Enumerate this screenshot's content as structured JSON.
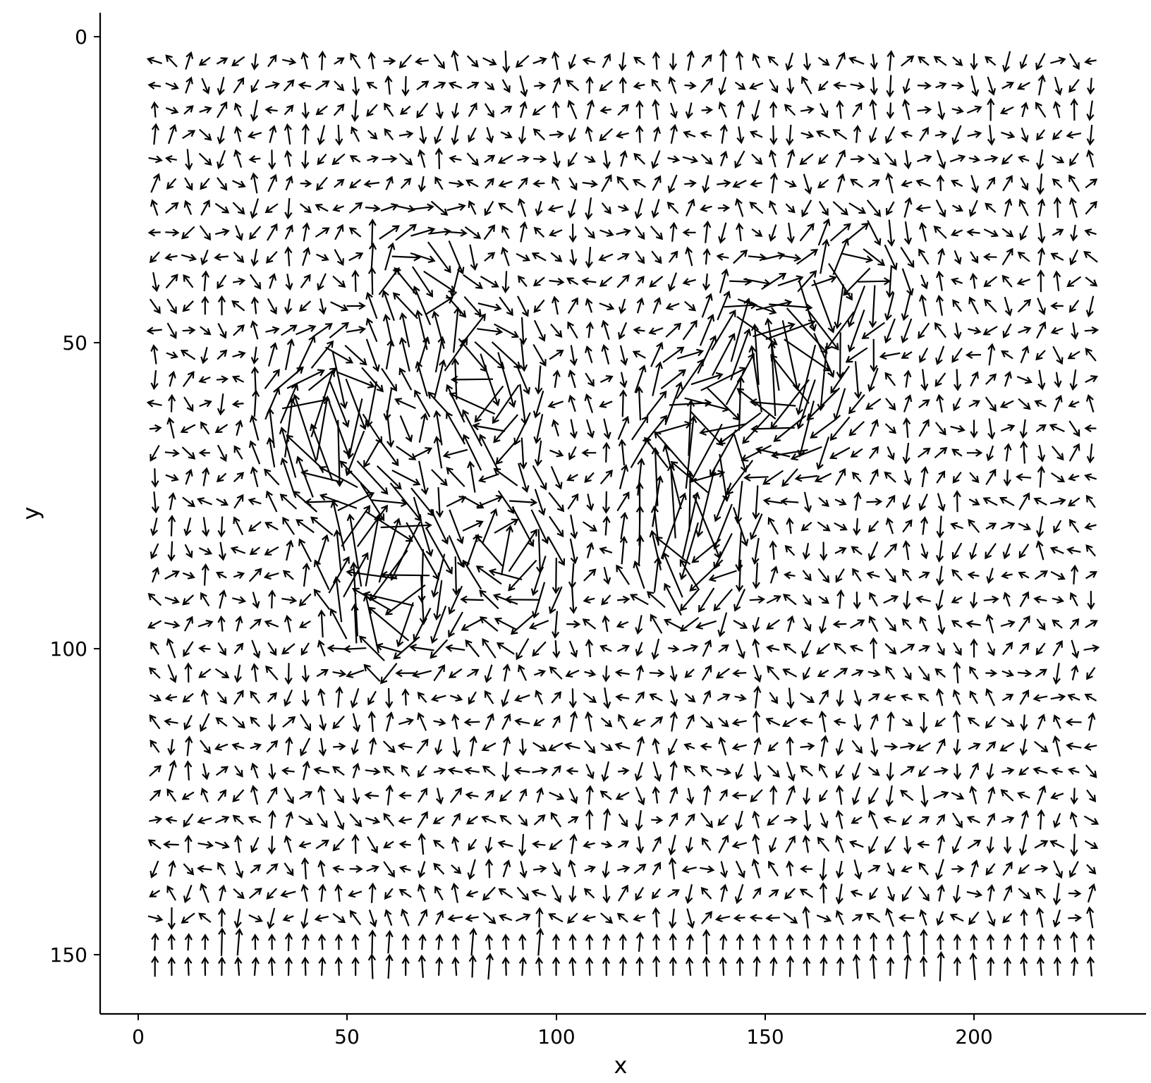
{
  "chart_data": {
    "type": "vector-field",
    "title": "",
    "xlabel": "x",
    "ylabel": "y",
    "xlim": [
      -9,
      239
    ],
    "ylim": [
      160,
      -4
    ],
    "y_reversed": true,
    "xticks": [
      0,
      50,
      100,
      150,
      200
    ],
    "yticks": [
      0,
      50,
      100,
      150
    ],
    "grid": false,
    "legend": "none",
    "arrow_color": "#000000",
    "field": {
      "x_range": [
        4,
        228
      ],
      "y_range": [
        4,
        152
      ],
      "x_count": 57,
      "y_count": 38,
      "cell_size": 4,
      "arrow_length_typical": 3.2,
      "arrow_length_max": 12,
      "vortices": [
        {
          "x": 60,
          "y": 87,
          "strength": 10
        },
        {
          "x": 45,
          "y": 63,
          "strength": 7
        },
        {
          "x": 82,
          "y": 58,
          "strength": 5
        },
        {
          "x": 133,
          "y": 65,
          "strength": 6
        },
        {
          "x": 157,
          "y": 57,
          "strength": 6
        },
        {
          "x": 150,
          "y": 52,
          "strength": 5
        },
        {
          "x": 132,
          "y": 82,
          "strength": 5
        },
        {
          "x": 90,
          "y": 86,
          "strength": 4
        },
        {
          "x": 68,
          "y": 40,
          "strength": 3
        },
        {
          "x": 172,
          "y": 41,
          "strength": 3
        }
      ],
      "bottom_rows_direction": "up"
    }
  },
  "labels": {
    "x_ticks": [
      "0",
      "50",
      "100",
      "150",
      "200"
    ],
    "y_ticks": [
      "0",
      "50",
      "100",
      "150"
    ],
    "x_title": "x",
    "y_title": "y"
  }
}
